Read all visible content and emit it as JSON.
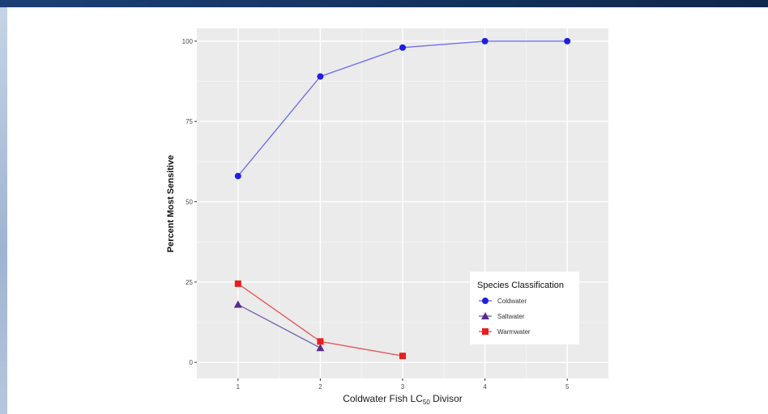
{
  "chart_data": {
    "type": "line",
    "xlabel": {
      "prefix": "Coldwater Fish LC",
      "subscript": "50",
      "suffix": " Divisor"
    },
    "ylabel": "Percent Most Sensitive",
    "x_ticks": [
      1,
      2,
      3,
      4,
      5
    ],
    "y_ticks": [
      0,
      25,
      50,
      75,
      100
    ],
    "y_tick_labels": [
      "0",
      "25",
      "50",
      "75",
      "100"
    ],
    "xlim": [
      0.5,
      5.5
    ],
    "ylim": [
      -5,
      104
    ],
    "grid": true,
    "legend": {
      "title": "Species Classification",
      "position": "bottom-right"
    },
    "series": [
      {
        "name": "Coldwater",
        "color": "#1f1fe0",
        "line_color": "#7070f0",
        "marker": "circle",
        "x": [
          1,
          2,
          3,
          4,
          5
        ],
        "y": [
          58,
          89,
          98,
          100,
          100
        ]
      },
      {
        "name": "Saltwater",
        "color": "#5a2a90",
        "line_color": "#7a6aac",
        "marker": "triangle",
        "x": [
          1,
          2
        ],
        "y": [
          18,
          4.5
        ]
      },
      {
        "name": "Warmwater",
        "color": "#ea1c1c",
        "line_color": "#e45a5a",
        "marker": "square",
        "x": [
          1,
          2,
          3
        ],
        "y": [
          24.5,
          6.5,
          2
        ]
      }
    ]
  }
}
